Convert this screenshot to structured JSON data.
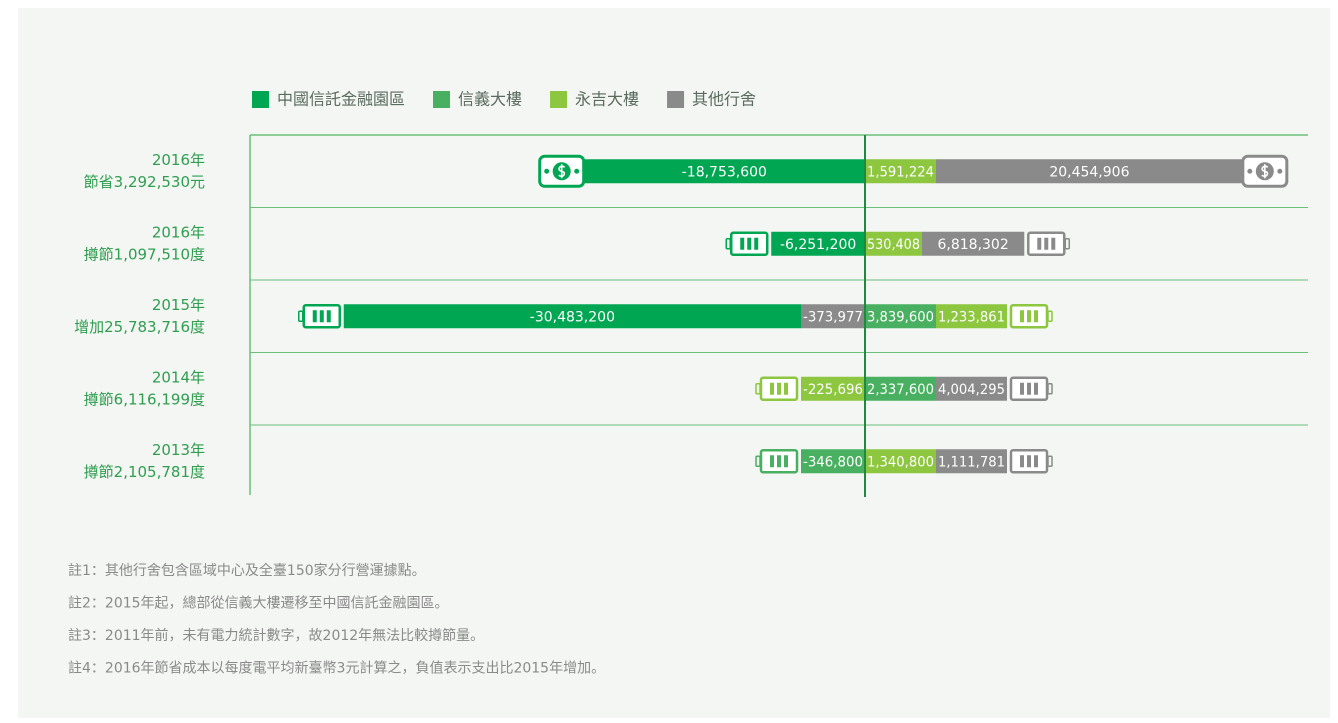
{
  "chart_data": {
    "type": "diverging-bar",
    "categories": [
      [
        "2016年",
        "節省3,292,530元"
      ],
      [
        "2016年",
        "撙節1,097,510度"
      ],
      [
        "2015年",
        "增加25,783,716度"
      ],
      [
        "2014年",
        "撙節6,116,199度"
      ],
      [
        "2013年",
        "撙節2,105,781度"
      ]
    ],
    "series": [
      {
        "name": "中國信託金融園區",
        "color": "#00a651",
        "values": [
          -18753600,
          -6251200,
          -30483200,
          null,
          null
        ],
        "value_labels": [
          "-18,753,600",
          "-6,251,200",
          "-30,483,200",
          null,
          null
        ]
      },
      {
        "name": "信義大樓",
        "color": "#48b060",
        "values": [
          null,
          null,
          3839600,
          2337600,
          -346800
        ],
        "value_labels": [
          null,
          null,
          "3,839,600",
          "2,337,600",
          "-346,800"
        ]
      },
      {
        "name": "永吉大樓",
        "color": "#8dc63f",
        "values": [
          1591224,
          530408,
          1233861,
          -225696,
          1340800
        ],
        "value_labels": [
          "1,591,224",
          "530,408",
          "1,233,861",
          "-225,696",
          "1,340,800"
        ]
      },
      {
        "name": "其他行舍",
        "color": "#8a8a8a",
        "values": [
          20454906,
          6818302,
          -373977,
          4004295,
          1111781
        ],
        "value_labels": [
          "20,454,906",
          "6,818,302",
          "-373,977",
          "4,004,295",
          "1,111,781"
        ]
      }
    ],
    "notes": [
      "註1：其他行舍包含區域中心及全臺150家分行營運據點。",
      "註2：2015年起，總部從信義大樓遷移至中國信託金融園區。",
      "註3：2011年前，未有電力統計數字，故2012年無法比較撙節量。",
      "註4：2016年節省成本以每度電平均新臺幣3元計算之，負值表示支出比2015年增加。"
    ]
  }
}
